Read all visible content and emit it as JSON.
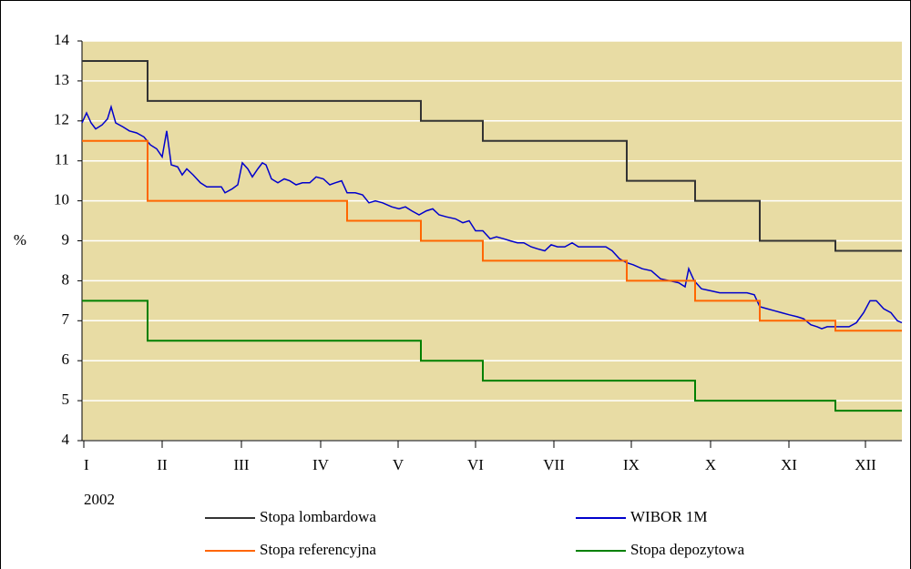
{
  "chart_data": {
    "type": "line",
    "y_label": "%",
    "year_label": "2002",
    "xlim": [
      0,
      900
    ],
    "xticks": [
      {
        "value": 2,
        "label": "I"
      },
      {
        "value": 88,
        "label": "II"
      },
      {
        "value": 175,
        "label": "III"
      },
      {
        "value": 262,
        "label": "IV"
      },
      {
        "value": 347,
        "label": "V"
      },
      {
        "value": 432,
        "label": "VI"
      },
      {
        "value": 518,
        "label": "VII"
      },
      {
        "value": 603,
        "label": "IX"
      },
      {
        "value": 690,
        "label": "X"
      },
      {
        "value": 776,
        "label": "XI"
      },
      {
        "value": 860,
        "label": "XII"
      }
    ],
    "ylim": [
      4,
      14
    ],
    "yticks": [
      4,
      5,
      6,
      7,
      8,
      9,
      10,
      11,
      12,
      13,
      14
    ],
    "grid": true,
    "background": "#e8dca4",
    "series": [
      {
        "name": "Stopa lombardowa",
        "color": "#333333",
        "x": [
          0,
          72,
          72,
          372,
          372,
          440,
          440,
          598,
          598,
          673,
          673,
          744,
          744,
          827,
          827,
          900
        ],
        "values": [
          13.5,
          13.5,
          12.5,
          12.5,
          12,
          12,
          11.5,
          11.5,
          10.5,
          10.5,
          10,
          10,
          9,
          9,
          8.75,
          8.75
        ]
      },
      {
        "name": "WIBOR 1M",
        "color": "#0000cc",
        "x": [
          0,
          5,
          10,
          15,
          22,
          28,
          32,
          37,
          45,
          52,
          60,
          68,
          75,
          82,
          88,
          93,
          98,
          105,
          110,
          115,
          122,
          130,
          137,
          145,
          153,
          157,
          165,
          171,
          176,
          182,
          187,
          193,
          198,
          202,
          208,
          215,
          222,
          228,
          235,
          242,
          250,
          257,
          265,
          272,
          278,
          285,
          291,
          300,
          308,
          315,
          322,
          330,
          340,
          348,
          355,
          362,
          370,
          378,
          385,
          392,
          400,
          410,
          418,
          425,
          432,
          440,
          448,
          455,
          463,
          470,
          478,
          485,
          493,
          500,
          508,
          515,
          522,
          530,
          538,
          545,
          555,
          565,
          575,
          582,
          590,
          598,
          605,
          615,
          625,
          635,
          645,
          655,
          662,
          666,
          672,
          680,
          690,
          700,
          710,
          720,
          730,
          738,
          744,
          752,
          760,
          768,
          776,
          785,
          792,
          800,
          807,
          812,
          818,
          825,
          835,
          842,
          850,
          858,
          865,
          872,
          880,
          888,
          895,
          900
        ],
        "values": [
          11.95,
          12.2,
          11.95,
          11.8,
          11.9,
          12.05,
          12.35,
          11.95,
          11.85,
          11.75,
          11.7,
          11.6,
          11.4,
          11.3,
          11.1,
          11.75,
          10.9,
          10.85,
          10.65,
          10.8,
          10.65,
          10.45,
          10.35,
          10.35,
          10.35,
          10.2,
          10.3,
          10.4,
          10.95,
          10.8,
          10.6,
          10.8,
          10.95,
          10.9,
          10.55,
          10.45,
          10.55,
          10.5,
          10.4,
          10.45,
          10.45,
          10.6,
          10.55,
          10.4,
          10.45,
          10.5,
          10.2,
          10.2,
          10.15,
          9.95,
          10.0,
          9.95,
          9.85,
          9.8,
          9.85,
          9.75,
          9.65,
          9.75,
          9.8,
          9.65,
          9.6,
          9.55,
          9.45,
          9.5,
          9.25,
          9.25,
          9.05,
          9.1,
          9.05,
          9.0,
          8.95,
          8.95,
          8.85,
          8.8,
          8.75,
          8.9,
          8.85,
          8.85,
          8.95,
          8.85,
          8.85,
          8.85,
          8.85,
          8.75,
          8.55,
          8.45,
          8.4,
          8.3,
          8.25,
          8.05,
          8.0,
          7.95,
          7.85,
          8.3,
          8.0,
          7.8,
          7.75,
          7.7,
          7.7,
          7.7,
          7.7,
          7.65,
          7.35,
          7.3,
          7.25,
          7.2,
          7.15,
          7.1,
          7.05,
          6.9,
          6.85,
          6.8,
          6.85,
          6.85,
          6.85,
          6.85,
          6.95,
          7.2,
          7.5,
          7.5,
          7.3,
          7.2,
          7.0,
          6.95
        ]
      },
      {
        "name": "Stopa referencyjna",
        "color": "#ff6600",
        "x": [
          0,
          72,
          72,
          291,
          291,
          372,
          372,
          440,
          440,
          598,
          598,
          673,
          673,
          744,
          744,
          827,
          827,
          900
        ],
        "values": [
          11.5,
          11.5,
          10,
          10,
          9.5,
          9.5,
          9,
          9,
          8.5,
          8.5,
          8,
          8,
          7.5,
          7.5,
          7,
          7,
          6.75,
          6.75
        ]
      },
      {
        "name": "Stopa depozytowa",
        "color": "#008000",
        "x": [
          0,
          72,
          72,
          372,
          372,
          440,
          440,
          673,
          673,
          827,
          827,
          900
        ],
        "values": [
          7.5,
          7.5,
          6.5,
          6.5,
          6,
          6,
          5.5,
          5.5,
          5,
          5,
          4.75,
          4.75
        ]
      }
    ]
  }
}
